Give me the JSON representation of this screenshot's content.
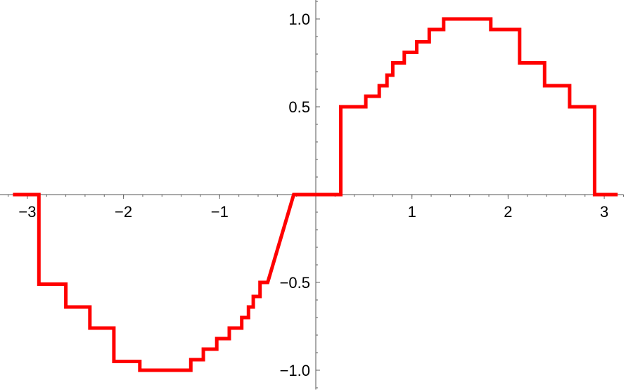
{
  "chart_data": {
    "type": "line",
    "step": true,
    "xlim": [
      -3.3,
      3.2
    ],
    "ylim": [
      -1.11,
      1.11
    ],
    "x_ticks": [
      -3,
      -2,
      -1,
      1,
      2,
      3
    ],
    "x_tick_labels": [
      "−3",
      "−2",
      "−1",
      "1",
      "2",
      "3"
    ],
    "y_ticks": [
      -1.0,
      -0.5,
      0.5,
      1.0
    ],
    "y_tick_labels": [
      "−1.0",
      "−0.5",
      "0.5",
      "1.0"
    ],
    "x_minor_step": 0.2,
    "y_minor_step": 0.1,
    "grid": false,
    "line_color": "#ff0000",
    "series": [
      {
        "x": [
          -3.15,
          -2.88,
          -2.88,
          -2.6,
          -2.6,
          -2.35,
          -2.35,
          -2.1,
          -2.1,
          -1.83,
          -1.83,
          -1.3,
          -1.3,
          -1.17,
          -1.17,
          -1.03,
          -1.03,
          -0.9,
          -0.9,
          -0.77,
          -0.77,
          -0.7,
          -0.7,
          -0.65,
          -0.65,
          -0.58,
          -0.58,
          -0.5,
          -0.5,
          -0.23,
          -0.23,
          0.26,
          0.26,
          0.52,
          0.52,
          0.66,
          0.66,
          0.74,
          0.74,
          0.8,
          0.8,
          0.92,
          0.92,
          1.05,
          1.05,
          1.18,
          1.18,
          1.33,
          1.33,
          1.82,
          1.82,
          2.12,
          2.12,
          2.38,
          2.38,
          2.64,
          2.64,
          2.9,
          2.9,
          3.14
        ],
        "y": [
          0,
          0,
          -0.51,
          -0.51,
          -0.64,
          -0.64,
          -0.76,
          -0.76,
          -0.95,
          -0.95,
          -1.0,
          -1.0,
          -0.94,
          -0.94,
          -0.88,
          -0.88,
          -0.82,
          -0.82,
          -0.76,
          -0.76,
          -0.7,
          -0.7,
          -0.64,
          -0.64,
          -0.58,
          -0.58,
          -0.5,
          -0.5,
          -0.5,
          0,
          0,
          0,
          0.5,
          0.5,
          0.56,
          0.56,
          0.62,
          0.62,
          0.68,
          0.68,
          0.75,
          0.75,
          0.81,
          0.81,
          0.87,
          0.87,
          0.94,
          0.94,
          1.0,
          1.0,
          0.94,
          0.94,
          0.75,
          0.75,
          0.62,
          0.62,
          0.5,
          0.5,
          0,
          0
        ]
      }
    ]
  }
}
